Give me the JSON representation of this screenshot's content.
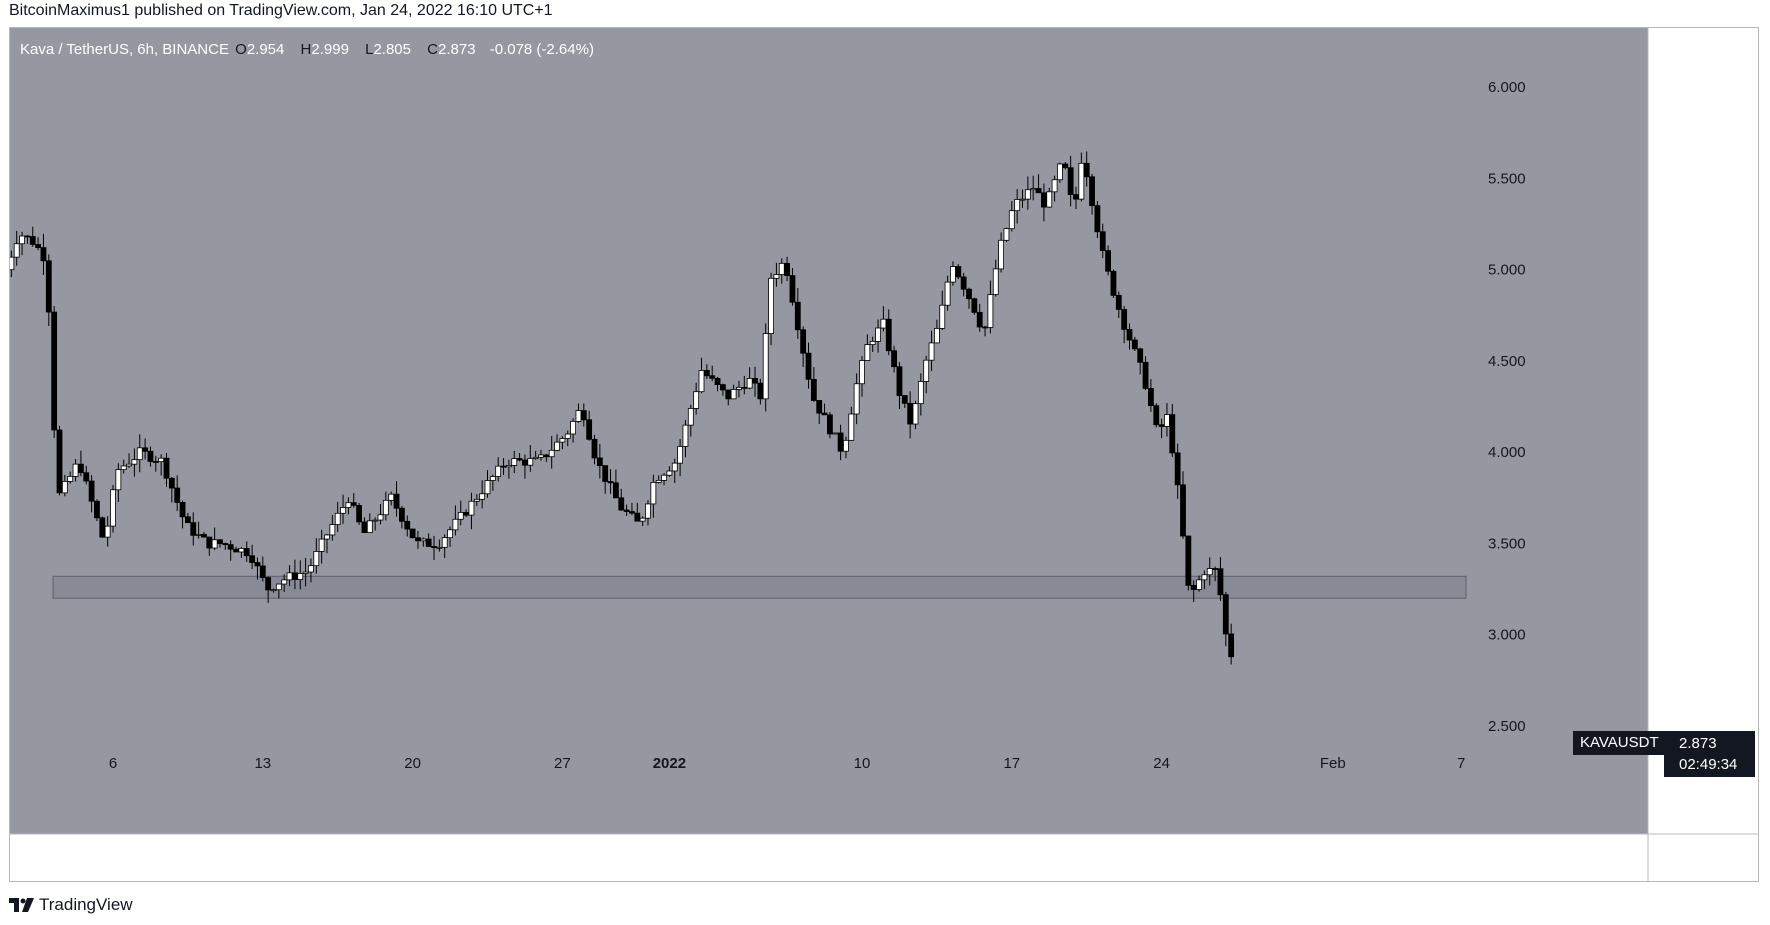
{
  "header": {
    "published_text": "BitcoinMaximus1 published on TradingView.com, Jan 24, 2022 16:10 UTC+1"
  },
  "legend": {
    "symbol_text": "Kava / TetherUS, 6h, BINANCE",
    "open_label": "O",
    "open": "2.954",
    "high_label": "H",
    "high": "2.999",
    "low_label": "L",
    "low": "2.805",
    "close_label": "C",
    "close": "2.873",
    "change": "-0.078 (-2.64%)"
  },
  "price_scale": {
    "unit": "USDT"
  },
  "last_price": {
    "symbol": "KAVAUSDT",
    "price": "2.873",
    "countdown": "02:49:34"
  },
  "footer": {
    "brand": "TradingView"
  },
  "colors": {
    "background": "#9598a1",
    "axis_bg": "#ffffff",
    "candle_up_body": "#ffffff",
    "candle_down_body": "#000000",
    "wick": "#000000",
    "support_zone": "#868993",
    "text_dark": "#131722"
  },
  "chart_data": {
    "type": "candlestick",
    "ylim": [
      2.5,
      6.0
    ],
    "y_ticks": [
      "2.500",
      "3.000",
      "3.500",
      "4.000",
      "4.500",
      "5.000",
      "5.500",
      "6.000"
    ],
    "x_ticks": [
      {
        "label": "6",
        "day": 6
      },
      {
        "label": "13",
        "day": 13
      },
      {
        "label": "20",
        "day": 20
      },
      {
        "label": "27",
        "day": 27
      },
      {
        "label": "2022",
        "day": 32,
        "bold": true
      },
      {
        "label": "10",
        "day": 41
      },
      {
        "label": "17",
        "day": 48
      },
      {
        "label": "24",
        "day": 55
      },
      {
        "label": "Feb",
        "day": 63
      },
      {
        "label": "7",
        "day": 69
      }
    ],
    "support_zone": {
      "from": 3.2,
      "to": 3.32
    },
    "path": [
      [
        1.0,
        5.0
      ],
      [
        1.6,
        5.2
      ],
      [
        2.3,
        5.15
      ],
      [
        2.9,
        5.05
      ],
      [
        3.4,
        3.75
      ],
      [
        3.7,
        3.8
      ],
      [
        4.4,
        3.95
      ],
      [
        5.2,
        3.65
      ],
      [
        5.6,
        3.5
      ],
      [
        6.2,
        3.9
      ],
      [
        7.3,
        4.0
      ],
      [
        8.3,
        3.95
      ],
      [
        9.4,
        3.6
      ],
      [
        10.4,
        3.5
      ],
      [
        11.1,
        3.5
      ],
      [
        12.4,
        3.45
      ],
      [
        13.2,
        3.25
      ],
      [
        13.9,
        3.3
      ],
      [
        15.1,
        3.35
      ],
      [
        16.0,
        3.55
      ],
      [
        17.0,
        3.75
      ],
      [
        17.7,
        3.55
      ],
      [
        19.0,
        3.75
      ],
      [
        20.2,
        3.5
      ],
      [
        21.2,
        3.5
      ],
      [
        22.3,
        3.65
      ],
      [
        23.3,
        3.8
      ],
      [
        24.4,
        3.95
      ],
      [
        25.9,
        3.95
      ],
      [
        27.2,
        4.1
      ],
      [
        27.9,
        4.25
      ],
      [
        28.6,
        3.95
      ],
      [
        29.7,
        3.7
      ],
      [
        30.6,
        3.6
      ],
      [
        31.3,
        3.85
      ],
      [
        32.3,
        3.95
      ],
      [
        33.5,
        4.45
      ],
      [
        34.7,
        4.3
      ],
      [
        35.7,
        4.4
      ],
      [
        36.3,
        4.3
      ],
      [
        36.7,
        4.95
      ],
      [
        37.4,
        5.05
      ],
      [
        38.0,
        4.7
      ],
      [
        38.7,
        4.3
      ],
      [
        39.4,
        4.15
      ],
      [
        40.1,
        4.0
      ],
      [
        40.7,
        4.35
      ],
      [
        41.3,
        4.6
      ],
      [
        42.0,
        4.7
      ],
      [
        42.8,
        4.3
      ],
      [
        43.3,
        4.15
      ],
      [
        44.0,
        4.5
      ],
      [
        44.6,
        4.7
      ],
      [
        45.2,
        5.05
      ],
      [
        46.2,
        4.8
      ],
      [
        46.7,
        4.65
      ],
      [
        47.4,
        5.1
      ],
      [
        48.1,
        5.35
      ],
      [
        49.0,
        5.45
      ],
      [
        49.6,
        5.35
      ],
      [
        50.4,
        5.6
      ],
      [
        50.9,
        5.3
      ],
      [
        51.3,
        5.65
      ],
      [
        52.3,
        5.05
      ],
      [
        53.1,
        4.75
      ],
      [
        54.2,
        4.4
      ],
      [
        54.8,
        4.1
      ],
      [
        55.3,
        4.2
      ],
      [
        55.8,
        3.75
      ],
      [
        56.3,
        3.2
      ],
      [
        57.0,
        3.35
      ],
      [
        57.6,
        3.35
      ],
      [
        58.0,
        3.0
      ],
      [
        58.3,
        2.87
      ]
    ]
  }
}
